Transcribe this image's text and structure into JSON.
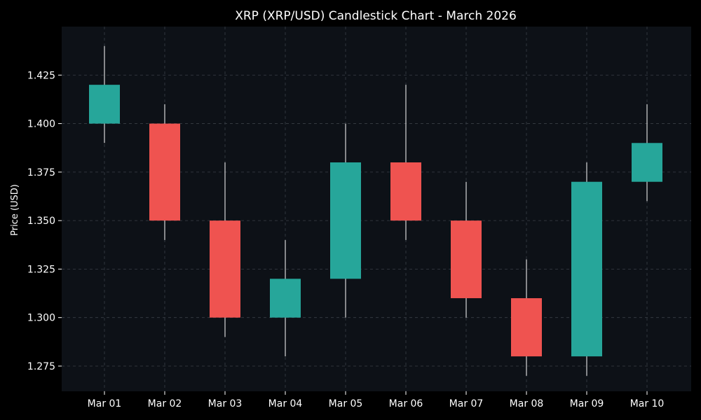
{
  "chart_data": {
    "type": "candlestick",
    "title": "XRP (XRP/USD) Candlestick Chart - March 2026",
    "xlabel": "",
    "ylabel": "Price (USD)",
    "ylim": [
      1.262,
      1.45
    ],
    "yticks": [
      1.275,
      1.3,
      1.325,
      1.35,
      1.375,
      1.4,
      1.425
    ],
    "ytick_labels": [
      "1.275",
      "1.300",
      "1.325",
      "1.350",
      "1.375",
      "1.400",
      "1.425"
    ],
    "grid": true,
    "categories": [
      "Mar 01",
      "Mar 02",
      "Mar 03",
      "Mar 04",
      "Mar 05",
      "Mar 06",
      "Mar 07",
      "Mar 08",
      "Mar 09",
      "Mar 10"
    ],
    "series": [
      {
        "name": "XRP/USD",
        "open": [
          1.4,
          1.4,
          1.35,
          1.3,
          1.32,
          1.38,
          1.35,
          1.31,
          1.28,
          1.37
        ],
        "high": [
          1.44,
          1.41,
          1.38,
          1.34,
          1.4,
          1.42,
          1.37,
          1.33,
          1.38,
          1.41
        ],
        "low": [
          1.39,
          1.34,
          1.29,
          1.28,
          1.3,
          1.34,
          1.3,
          1.27,
          1.27,
          1.36
        ],
        "close": [
          1.42,
          1.35,
          1.3,
          1.32,
          1.38,
          1.35,
          1.31,
          1.28,
          1.37,
          1.39
        ]
      }
    ],
    "colors": {
      "up": "#26a69a",
      "down": "#ef5350",
      "wick": "#ffffff",
      "plot_bg": "#0d1117",
      "grid": "#3a3f47",
      "axis_text": "#ffffff"
    }
  }
}
